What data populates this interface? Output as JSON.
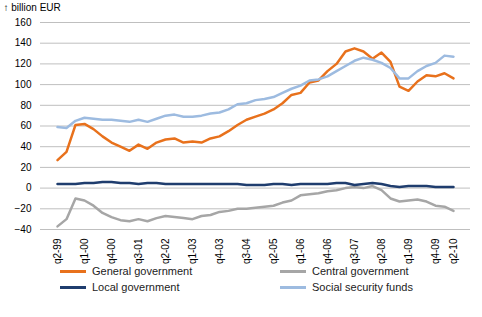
{
  "chart_data": {
    "type": "line",
    "y_label": "billion EUR",
    "categories": [
      "q2-99",
      null,
      null,
      "q1-00",
      null,
      null,
      "q4-00",
      null,
      null,
      "q3-01",
      null,
      null,
      "q2-02",
      null,
      null,
      "q1-03",
      null,
      null,
      "q4-03",
      null,
      null,
      "q3-04",
      null,
      null,
      "q2-05",
      null,
      null,
      "q1-06",
      null,
      null,
      "q4-06",
      null,
      null,
      "q3-07",
      null,
      null,
      "q2-08",
      null,
      null,
      "q1-09",
      null,
      null,
      "q4-09",
      null,
      "q2-10"
    ],
    "series": [
      {
        "name": "General government",
        "color": "#e8711c",
        "values": [
          27,
          35,
          61,
          62,
          57,
          50,
          44,
          40,
          36,
          42,
          38,
          44,
          47,
          48,
          44,
          45,
          44,
          48,
          50,
          55,
          61,
          66,
          69,
          72,
          76,
          82,
          90,
          92,
          102,
          104,
          113,
          120,
          132,
          135,
          132,
          125,
          131,
          122,
          98,
          94,
          103,
          109,
          108,
          111,
          106
        ]
      },
      {
        "name": "Central government",
        "color": "#a6a6a6",
        "values": [
          -37,
          -30,
          -10,
          -12,
          -17,
          -24,
          -28,
          -31,
          -32,
          -30,
          -32,
          -29,
          -27,
          -28,
          -29,
          -30,
          -27,
          -26,
          -23,
          -22,
          -20,
          -20,
          -19,
          -18,
          -17,
          -14,
          -12,
          -7,
          -6,
          -5,
          -3,
          -2,
          0,
          1,
          0,
          2,
          -2,
          -10,
          -13,
          -12,
          -11,
          -13,
          -17,
          -18,
          -22
        ]
      },
      {
        "name": "Local government",
        "color": "#1f3d6e",
        "values": [
          4,
          4,
          4,
          5,
          5,
          6,
          6,
          5,
          5,
          4,
          5,
          5,
          4,
          4,
          4,
          4,
          4,
          4,
          4,
          4,
          4,
          3,
          3,
          3,
          4,
          4,
          3,
          4,
          4,
          4,
          4,
          5,
          5,
          3,
          4,
          5,
          4,
          2,
          1,
          2,
          2,
          2,
          1,
          1,
          1
        ]
      },
      {
        "name": "Social security funds",
        "color": "#9dbbe0",
        "values": [
          59,
          58,
          65,
          68,
          67,
          66,
          66,
          65,
          64,
          66,
          64,
          67,
          70,
          71,
          69,
          69,
          70,
          72,
          73,
          76,
          81,
          82,
          85,
          86,
          88,
          92,
          96,
          99,
          104,
          105,
          108,
          113,
          118,
          123,
          126,
          124,
          121,
          116,
          106,
          106,
          113,
          118,
          121,
          128,
          127
        ]
      }
    ],
    "ylim": [
      -40,
      160
    ],
    "yticks": [
      -40,
      -20,
      0,
      20,
      40,
      60,
      80,
      100,
      120,
      140,
      160
    ],
    "grid": true,
    "legend": "bottom"
  }
}
